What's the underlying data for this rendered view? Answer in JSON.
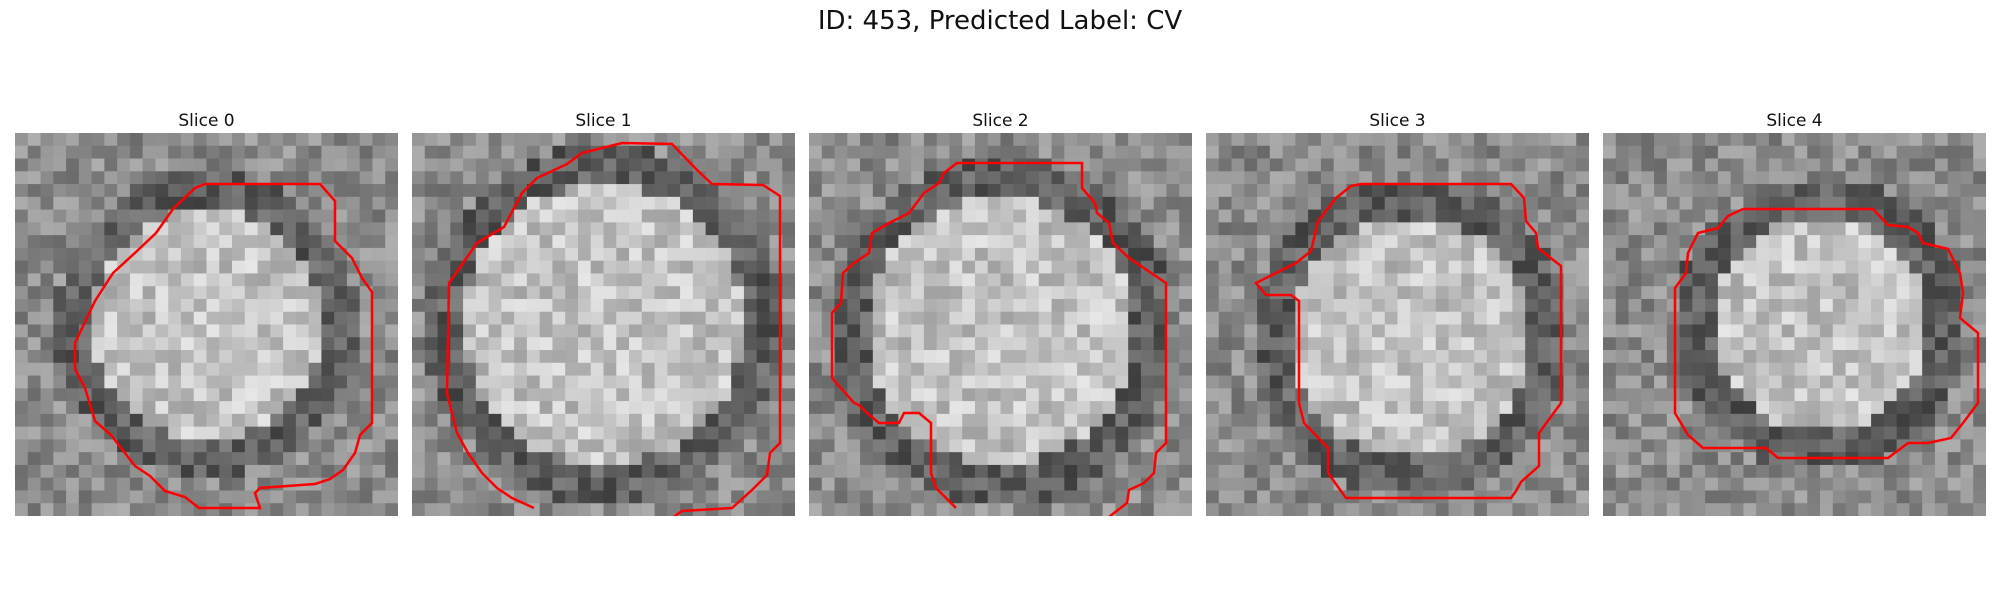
{
  "figure": {
    "title": "ID: 453, Predicted Label: CV"
  },
  "slices": [
    {
      "title": "Slice 0"
    },
    {
      "title": "Slice 1"
    },
    {
      "title": "Slice 2"
    },
    {
      "title": "Slice 3"
    },
    {
      "title": "Slice 4"
    }
  ],
  "colors": {
    "contour": "#ff0000",
    "background": "#ffffff"
  }
}
